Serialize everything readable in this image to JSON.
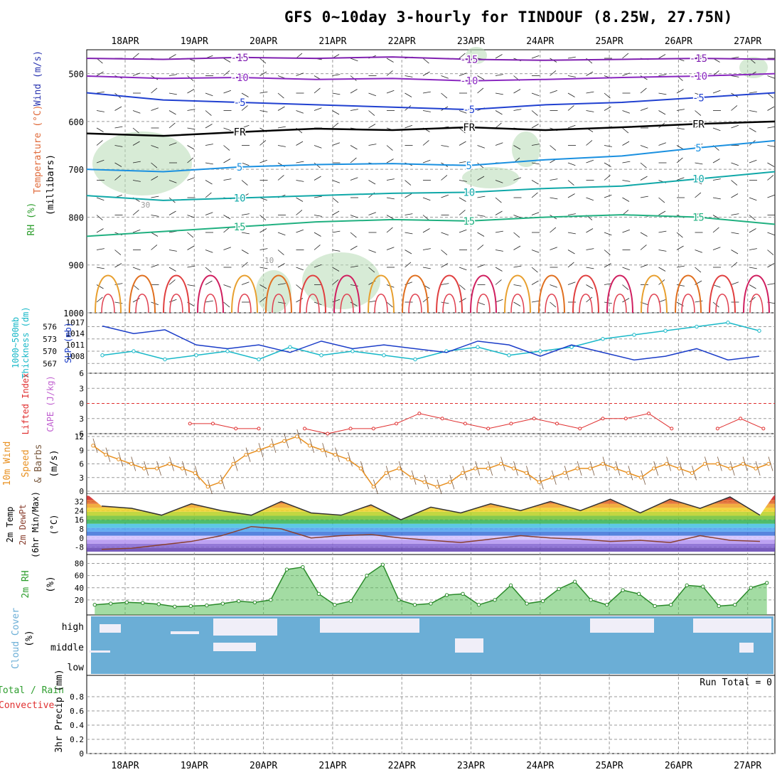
{
  "title": "GFS 0~10day 3-hourly for TINDOUF (8.25W, 27.75N)",
  "dates": [
    "18APR",
    "19APR",
    "20APR",
    "21APR",
    "22APR",
    "23APR",
    "24APR",
    "25APR",
    "26APR",
    "27APR"
  ],
  "colors": {
    "rh": "#2e9e2e",
    "temp": "#e06a3a",
    "wind": "#2b35b0",
    "cyan": "#18b8c8",
    "red": "#e03030",
    "orange": "#e89020",
    "violet": "#c060d0",
    "cloud": "#6baed6",
    "slp": "#1a3cc8"
  },
  "labels": {
    "p1_wind": "Wind (m/s)",
    "p1_temp": "Temperature (°C)",
    "p1_rh": "RH (%)",
    "p1_unit": "(millibars)",
    "p2_thick": "1000~500mb",
    "p2_thick2": "Thickness (dm)",
    "p2_slp": "SLP (mb)",
    "p3_li": "Lifted Index",
    "p3_cape": "CAPE (J/kg)",
    "p4_a": "10m Wind",
    "p4_b": "Speed",
    "p4_c": "& Barbs",
    "p4_unit": "(m/s)",
    "p5_a": "2m Temp",
    "p5_b": "2m DewPt",
    "p5_c": "(6hr Min/Max)",
    "p5_unit": "(°C)",
    "p6_a": "2m RH",
    "p6_unit": "(%)",
    "p7_a": "Cloud Cover",
    "p7_unit": "(%)",
    "p8_a": "Total / Rain",
    "p8_b": "Convective",
    "p8_c": "3hr Precip (mm)",
    "run_total": "Run Total = 0",
    "fr": "FR"
  },
  "chart_data": [
    {
      "type": "line",
      "panel": "pressure-cross-section",
      "yaxis": {
        "label": "(millibars)",
        "ticks": [
          "500",
          "600",
          "700",
          "800",
          "900",
          "1000"
        ],
        "ylim": [
          450,
          1000
        ]
      },
      "isotherm_labels": [
        "-15",
        "-10",
        "-5",
        "FR",
        "5",
        "10",
        "15"
      ],
      "rh_labels": [
        "30",
        "10"
      ],
      "series": [
        {
          "name": "-15",
          "values": [
            468,
            470,
            466,
            468,
            465,
            470,
            472,
            470,
            468,
            470
          ]
        },
        {
          "name": "-10",
          "values": [
            505,
            510,
            508,
            512,
            510,
            515,
            512,
            508,
            505,
            500
          ]
        },
        {
          "name": "-5",
          "values": [
            540,
            555,
            560,
            565,
            570,
            575,
            565,
            560,
            550,
            540
          ]
        },
        {
          "name": "FR",
          "values": [
            625,
            630,
            622,
            615,
            618,
            612,
            618,
            612,
            605,
            600
          ]
        },
        {
          "name": "5",
          "values": [
            700,
            705,
            695,
            690,
            688,
            692,
            680,
            672,
            655,
            640
          ]
        },
        {
          "name": "10",
          "values": [
            755,
            765,
            760,
            755,
            750,
            748,
            740,
            735,
            720,
            705
          ]
        },
        {
          "name": "15",
          "values": [
            840,
            830,
            820,
            810,
            805,
            808,
            800,
            795,
            800,
            815
          ]
        }
      ]
    },
    {
      "type": "line",
      "panel": "thickness-slp",
      "thickness_ticks": [
        "576",
        "573",
        "570",
        "567"
      ],
      "slp_ticks": [
        "1017",
        "1014",
        "1011",
        "1008"
      ],
      "series": [
        {
          "name": "1000~500mb Thickness (dm)",
          "values": [
            569,
            570,
            568,
            569,
            570,
            568,
            571,
            569,
            570,
            569,
            568,
            570,
            571,
            569,
            570,
            571,
            573,
            574,
            575,
            576,
            577,
            575
          ]
        },
        {
          "name": "SLP (mb)",
          "values": [
            1016,
            1014,
            1015,
            1011,
            1010,
            1011,
            1009,
            1012,
            1010,
            1011,
            1010,
            1009,
            1012,
            1011,
            1008,
            1011,
            1009,
            1007,
            1008,
            1010,
            1007,
            1008
          ]
        }
      ]
    },
    {
      "type": "line",
      "panel": "lifted-index-cape",
      "yaxis": {
        "ticks": [
          "6",
          "3",
          "0",
          "3",
          "6"
        ],
        "ylim": [
          -6,
          6
        ]
      },
      "series": [
        {
          "name": "Lifted Index",
          "values": [
            null,
            null,
            null,
            null,
            4,
            4,
            5,
            5,
            null,
            5,
            6,
            5,
            5,
            4,
            2,
            3,
            4,
            5,
            4,
            3,
            4,
            5,
            3,
            3,
            2,
            5,
            null,
            5,
            3,
            5
          ]
        }
      ]
    },
    {
      "type": "line",
      "panel": "10m-wind",
      "yaxis": {
        "label": "(m/s)",
        "ticks": [
          "12",
          "9",
          "6",
          "3",
          "0"
        ],
        "ylim": [
          0,
          12
        ]
      },
      "series": [
        {
          "name": "Speed",
          "values": [
            10,
            8,
            7,
            6,
            5,
            5,
            6,
            5,
            4,
            1,
            2,
            6,
            8,
            9,
            10,
            11,
            12,
            10,
            9,
            8,
            7,
            5,
            1,
            4,
            5,
            3,
            2,
            1,
            2,
            4,
            5,
            5,
            6,
            5,
            4,
            2,
            3,
            4,
            5,
            5,
            6,
            5,
            4,
            3,
            5,
            6,
            5,
            4,
            6,
            6,
            5,
            6,
            5,
            6
          ]
        }
      ]
    },
    {
      "type": "area",
      "panel": "2m-temp",
      "yaxis": {
        "label": "(°C)",
        "ticks": [
          "32",
          "24",
          "16",
          "8",
          "0",
          "-8"
        ],
        "ylim": [
          -12,
          36
        ]
      },
      "series": [
        {
          "name": "2m Temp",
          "values": [
            28,
            26,
            20,
            30,
            24,
            20,
            32,
            22,
            20,
            29,
            16,
            27,
            22,
            30,
            24,
            32,
            24,
            34,
            22,
            34,
            26,
            36,
            20
          ]
        },
        {
          "name": "2m DewPt",
          "values": [
            -10,
            -9,
            -6,
            -3,
            2,
            10,
            8,
            0,
            2,
            3,
            0,
            -2,
            -4,
            -1,
            2,
            0,
            -1,
            -3,
            -2,
            -4,
            2,
            -2,
            -3
          ]
        }
      ]
    },
    {
      "type": "area",
      "panel": "2m-rh",
      "yaxis": {
        "label": "(%)",
        "ticks": [
          "80",
          "60",
          "40",
          "20"
        ],
        "ylim": [
          0,
          90
        ]
      },
      "series": [
        {
          "name": "2m RH",
          "values": [
            12,
            14,
            16,
            15,
            13,
            9,
            10,
            11,
            14,
            18,
            16,
            20,
            70,
            74,
            30,
            12,
            18,
            60,
            78,
            20,
            12,
            14,
            28,
            30,
            12,
            20,
            44,
            14,
            18,
            38,
            50,
            20,
            12,
            36,
            30,
            10,
            12,
            44,
            42,
            10,
            12,
            40,
            48
          ]
        }
      ]
    },
    {
      "type": "bar",
      "panel": "cloud-cover",
      "categories": [
        "high",
        "middle",
        "low"
      ],
      "series": [
        {
          "name": "Cloud Cover",
          "values": [
            0,
            0,
            0
          ]
        }
      ]
    },
    {
      "type": "bar",
      "panel": "3hr-precip",
      "yaxis": {
        "label": "3hr Precip (mm)",
        "ticks": [
          "0.8",
          "0.6",
          "0.4",
          "0.2",
          "0"
        ],
        "ylim": [
          0,
          1
        ]
      },
      "series": [
        {
          "name": "Total / Rain",
          "values": [
            0,
            0,
            0,
            0,
            0,
            0,
            0,
            0,
            0,
            0
          ]
        }
      ]
    }
  ]
}
